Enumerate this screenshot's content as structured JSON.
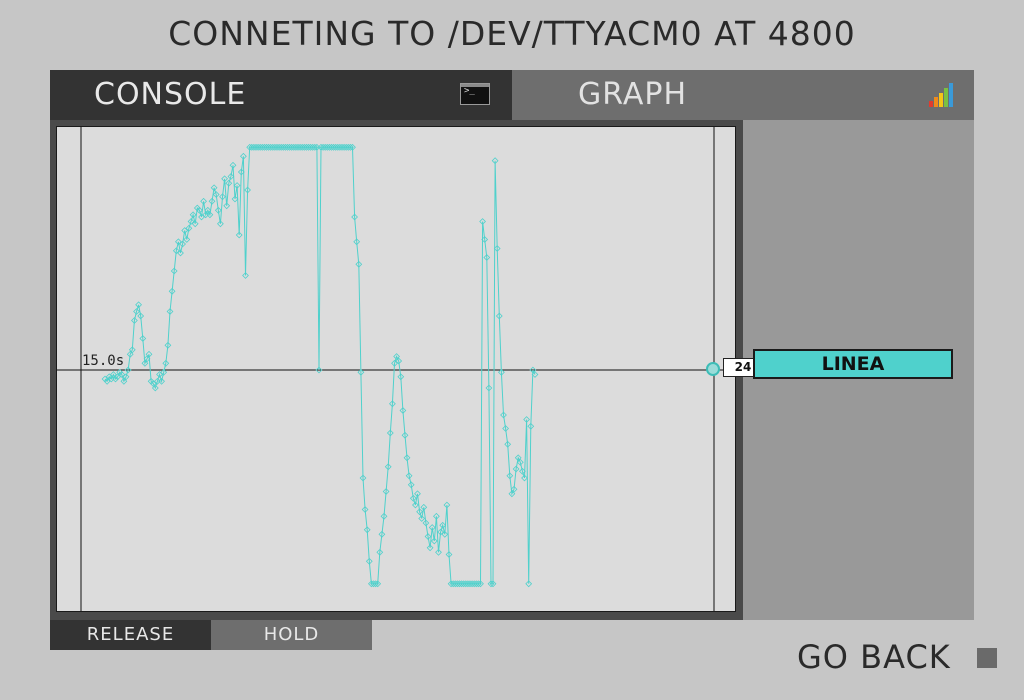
{
  "header": {
    "title": "CONNETING TO /DEV/TTYACM0 AT 4800"
  },
  "tabs": {
    "console": {
      "label": "CONSOLE",
      "icon": "terminal-icon",
      "icon_text": ">_"
    },
    "graph": {
      "label": "GRAPH",
      "icon": "bar-chart-icon"
    }
  },
  "graph": {
    "time_label": "15.0s",
    "current_value": "24",
    "series_label": "LINEA",
    "series_color": "#4fd1cc"
  },
  "controls": {
    "release_label": "RELEASE",
    "hold_label": "HOLD",
    "go_back_label": "GO BACK"
  },
  "chart_data": {
    "type": "line",
    "series": [
      {
        "name": "LINEA",
        "values": [
          -0.4,
          -0.5,
          -0.3,
          -0.4,
          -0.2,
          -0.4,
          -0.3,
          -0.1,
          -0.2,
          -0.5,
          -0.3,
          0.0,
          0.7,
          0.9,
          2.2,
          2.6,
          2.9,
          2.4,
          1.4,
          0.3,
          0.5,
          0.7,
          -0.5,
          -0.6,
          -0.8,
          -0.5,
          -0.2,
          -0.5,
          -0.1,
          0.3,
          1.1,
          2.6,
          3.5,
          4.4,
          5.3,
          5.7,
          5.2,
          5.6,
          6.2,
          5.8,
          6.3,
          6.6,
          6.9,
          6.5,
          7.2,
          7.1,
          6.8,
          7.5,
          6.9,
          7.1,
          6.9,
          7.5,
          8.1,
          7.8,
          7.1,
          6.5,
          7.7,
          8.5,
          7.3,
          8.3,
          8.6,
          9.1,
          7.6,
          8.2,
          6.0,
          8.8,
          9.5,
          4.2,
          8.0,
          9.9,
          9.9,
          9.9,
          9.9,
          9.9,
          9.9,
          9.9,
          9.9,
          9.9,
          9.9,
          9.9,
          9.9,
          9.9,
          9.9,
          9.9,
          9.9,
          9.9,
          9.9,
          9.9,
          9.9,
          9.9,
          9.9,
          9.9,
          9.9,
          9.9,
          9.9,
          9.9,
          9.9,
          9.9,
          9.9,
          9.9,
          9.9,
          9.9,
          0.0,
          9.9,
          9.9,
          9.9,
          9.9,
          9.9,
          9.9,
          9.9,
          9.9,
          9.9,
          9.9,
          9.9,
          9.9,
          9.9,
          9.9,
          9.9,
          9.9,
          6.8,
          5.7,
          4.7,
          -0.1,
          -4.8,
          -6.2,
          -7.1,
          -8.5,
          -9.5,
          -9.5,
          -9.5,
          -9.5,
          -8.1,
          -7.3,
          -6.5,
          -5.4,
          -4.3,
          -2.8,
          -1.5,
          0.3,
          0.6,
          0.4,
          -0.3,
          -1.8,
          -2.9,
          -3.9,
          -4.7,
          -5.1,
          -5.7,
          -6.0,
          -5.5,
          -6.3,
          -6.6,
          -6.1,
          -6.8,
          -7.4,
          -7.9,
          -7.0,
          -7.6,
          -6.5,
          -8.1,
          -7.2,
          -6.9,
          -7.3,
          -6.0,
          -8.2,
          -9.5,
          -9.5,
          -9.5,
          -9.5,
          -9.5,
          -9.5,
          -9.5,
          -9.5,
          -9.5,
          -9.5,
          -9.5,
          -9.5,
          -9.5,
          -9.5,
          -9.5,
          6.6,
          5.8,
          5.0,
          -0.8,
          -9.5,
          -9.5,
          9.3,
          5.4,
          2.4,
          -0.1,
          -2.0,
          -2.6,
          -3.3,
          -4.7,
          -5.5,
          -5.3,
          -4.4,
          -3.9,
          -4.1,
          -4.5,
          -4.8,
          -2.2,
          -9.5,
          -2.5,
          0.0,
          -0.2
        ]
      }
    ],
    "ylim": [
      -10,
      10
    ]
  }
}
